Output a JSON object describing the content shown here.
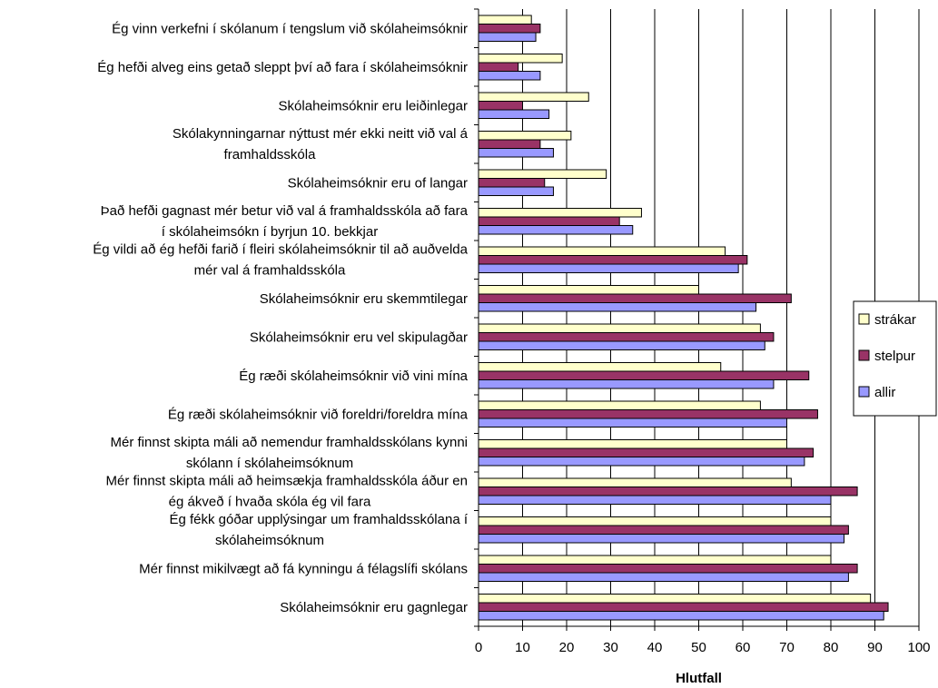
{
  "chart_data": {
    "type": "bar",
    "orientation": "horizontal",
    "xlabel": "Hlutfall",
    "xlim": [
      0,
      100
    ],
    "x_ticks": [
      "0",
      "10",
      "20",
      "30",
      "40",
      "50",
      "60",
      "70",
      "80",
      "90",
      "100"
    ],
    "grid": true,
    "legend_position": "right",
    "categories": [
      [
        "Ég vinn verkefni í skólanum í tengslum við skólaheimsóknir"
      ],
      [
        "Ég hefði alveg eins getað sleppt því að fara í skólaheimsóknir"
      ],
      [
        "Skólaheimsóknir eru leiðinlegar"
      ],
      [
        "Skólakynningarnar nýttust mér ekki neitt við val á",
        "framhaldsskóla"
      ],
      [
        "Skólaheimsóknir eru of langar"
      ],
      [
        "Það hefði gagnast mér betur við val á framhaldsskóla að fara",
        "í skólaheimsókn í byrjun 10. bekkjar"
      ],
      [
        "Ég vildi að ég hefði farið í fleiri skólaheimsóknir til að auðvelda",
        "mér val á framhaldsskóla"
      ],
      [
        "Skólaheimsóknir eru skemmtilegar"
      ],
      [
        "Skólaheimsóknir eru vel skipulagðar"
      ],
      [
        "Ég ræði skólaheimsóknir við vini mína"
      ],
      [
        "Ég ræði skólaheimsóknir við foreldri/foreldra mína"
      ],
      [
        "Mér finnst skipta máli að nemendur framhaldsskólans kynni",
        "skólann í skólaheimsóknum"
      ],
      [
        "Mér finnst skipta máli að heimsækja framhaldsskóla áður en",
        "ég ákveð í hvaða skóla ég vil fara"
      ],
      [
        "Ég fékk góðar upplýsingar um framhaldsskólana í",
        "skólaheimsóknum"
      ],
      [
        "Mér finnst mikilvægt að fá kynningu á félagslífi skólans"
      ],
      [
        "Skólaheimsóknir eru gagnlegar"
      ]
    ],
    "series": [
      {
        "name": "strákar",
        "color": "#FFFFCC",
        "values": [
          12,
          19,
          25,
          21,
          29,
          37,
          56,
          50,
          64,
          55,
          64,
          70,
          71,
          80,
          80,
          89
        ]
      },
      {
        "name": "stelpur",
        "color": "#993366",
        "values": [
          14,
          9,
          10,
          14,
          15,
          32,
          61,
          71,
          67,
          75,
          77,
          76,
          86,
          84,
          86,
          93
        ]
      },
      {
        "name": "allir",
        "color": "#9999FF",
        "values": [
          13,
          14,
          16,
          17,
          17,
          35,
          59,
          63,
          65,
          67,
          70,
          74,
          80,
          83,
          84,
          92
        ]
      }
    ]
  }
}
